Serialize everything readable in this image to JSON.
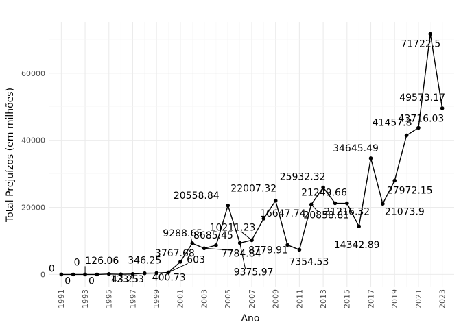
{
  "chart_data": {
    "type": "line",
    "xlabel": "Ano",
    "ylabel": "Total Prejuízos (em milhões)",
    "xlim": [
      1990,
      2024
    ],
    "ylim": [
      -3600,
      75300
    ],
    "x_ticks": [
      1991,
      1993,
      1995,
      1997,
      1999,
      2001,
      2003,
      2005,
      2007,
      2009,
      2011,
      2013,
      2015,
      2017,
      2019,
      2021,
      2023
    ],
    "y_ticks": [
      0,
      20000,
      40000,
      60000
    ],
    "grid": true,
    "legend": "none",
    "series": [
      {
        "color": "#000000",
        "points": [
          {
            "x": 1991,
            "y": 0,
            "label": "0"
          },
          {
            "x": 1992,
            "y": 0,
            "label": "0"
          },
          {
            "x": 1993,
            "y": 0,
            "label": "0"
          },
          {
            "x": 1994,
            "y": 0,
            "label": "0"
          },
          {
            "x": 1995,
            "y": 126.06,
            "label": "126.06"
          },
          {
            "x": 1996,
            "y": 43.25,
            "label": "43.25"
          },
          {
            "x": 1997,
            "y": 123.53,
            "label": "123.53"
          },
          {
            "x": 1998,
            "y": 346.25,
            "label": "346.25"
          },
          {
            "x": 1999,
            "y": 400.73,
            "label": "400.73"
          },
          {
            "x": 2000,
            "y": 603,
            "label": "603"
          },
          {
            "x": 2001,
            "y": 3767.68,
            "label": "3767.68"
          },
          {
            "x": 2002,
            "y": 9288.65,
            "label": "9288.65"
          },
          {
            "x": 2003,
            "y": 7784.84,
            "label": "7784.84"
          },
          {
            "x": 2004,
            "y": 8685.45,
            "label": "8685.45"
          },
          {
            "x": 2005,
            "y": 20558.84,
            "label": "20558.84"
          },
          {
            "x": 2006,
            "y": 9375.97,
            "label": "9375.97"
          },
          {
            "x": 2007,
            "y": 10211.23,
            "label": "10211.23"
          },
          {
            "x": 2008,
            "y": 16647.74,
            "label": "16647.74"
          },
          {
            "x": 2009,
            "y": 22007.32,
            "label": "22007.32"
          },
          {
            "x": 2010,
            "y": 8779.91,
            "label": "8779.91"
          },
          {
            "x": 2011,
            "y": 7354.53,
            "label": "7354.53"
          },
          {
            "x": 2012,
            "y": 20858.81,
            "label": "20858.81"
          },
          {
            "x": 2013,
            "y": 25932.32,
            "label": "25932.32"
          },
          {
            "x": 2014,
            "y": 21249.66,
            "label": "21249.66"
          },
          {
            "x": 2015,
            "y": 21216.32,
            "label": "21216.32"
          },
          {
            "x": 2016,
            "y": 14342.89,
            "label": "14342.89"
          },
          {
            "x": 2017,
            "y": 34645.49,
            "label": "34645.49"
          },
          {
            "x": 2018,
            "y": 21073.9,
            "label": "21073.9"
          },
          {
            "x": 2019,
            "y": 27972.15,
            "label": "27972.15"
          },
          {
            "x": 2020,
            "y": 41457.8,
            "label": "41457.8"
          },
          {
            "x": 2021,
            "y": 43716.03,
            "label": "43716.03"
          },
          {
            "x": 2022,
            "y": 71722.5,
            "label": "71722.5"
          },
          {
            "x": 2023,
            "y": 49573.17,
            "label": "49573.17"
          }
        ]
      }
    ]
  }
}
